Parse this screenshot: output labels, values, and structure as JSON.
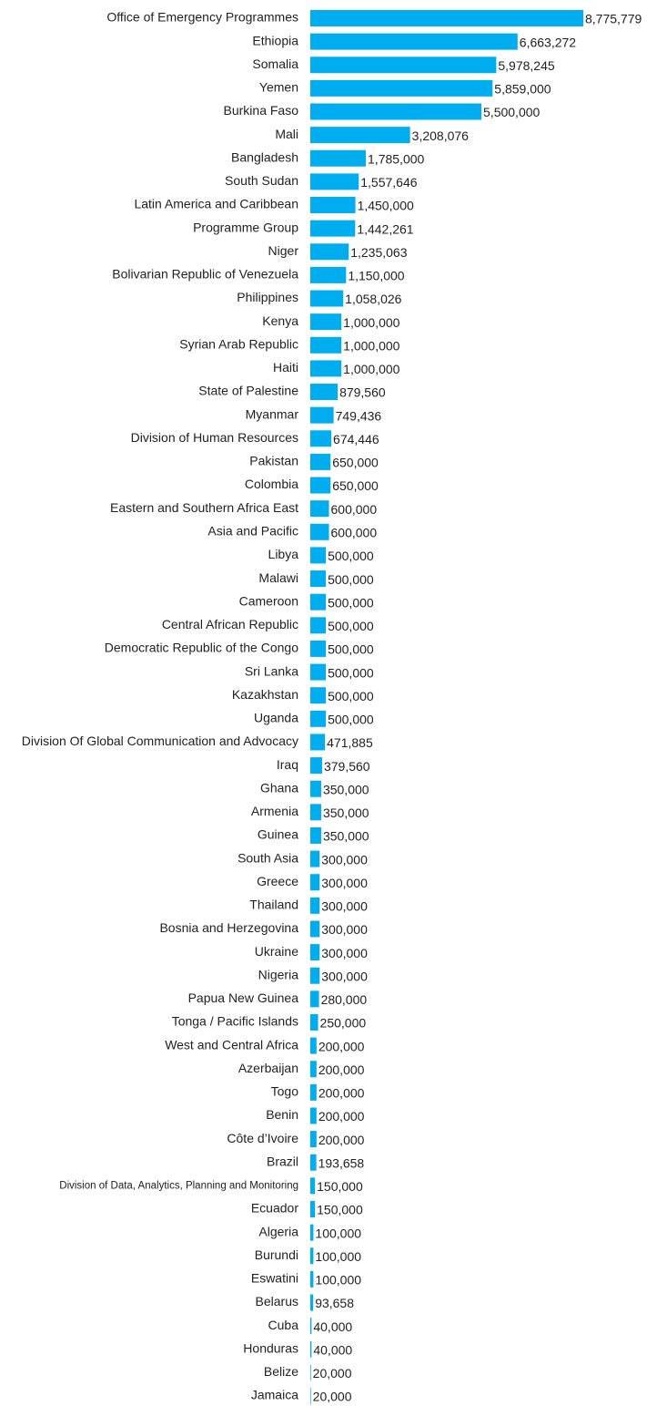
{
  "chart_data": {
    "type": "bar",
    "orientation": "horizontal",
    "color": "#00aeef",
    "categories": [
      "Office of Emergency Programmes",
      "Ethiopia",
      "Somalia",
      "Yemen",
      "Burkina Faso",
      "Mali",
      "Bangladesh",
      "South Sudan",
      "Latin America and Caribbean",
      "Programme Group",
      "Niger",
      "Bolivarian Republic of Venezuela",
      "Philippines",
      "Kenya",
      "Syrian Arab Republic",
      "Haiti",
      "State of Palestine",
      "Myanmar",
      "Division of Human Resources",
      "Pakistan",
      "Colombia",
      "Eastern and Southern Africa East",
      "Asia and Pacific",
      "Libya",
      "Malawi",
      "Cameroon",
      "Central African Republic",
      "Democratic Republic of the Congo",
      "Sri Lanka",
      "Kazakhstan",
      "Uganda",
      "Division Of Global Communication and Advocacy",
      "Iraq",
      "Ghana",
      "Armenia",
      "Guinea",
      "South Asia",
      "Greece",
      "Thailand",
      "Bosnia and Herzegovina",
      "Ukraine",
      "Nigeria",
      "Papua New Guinea",
      "Tonga / Pacific Islands",
      "West and Central Africa",
      "Azerbaijan",
      "Togo",
      "Benin",
      "Côte d’Ivoire",
      "Brazil",
      "Division of Data, Analytics, Planning and Monitoring",
      "Ecuador",
      "Algeria",
      "Burundi",
      "Eswatini",
      "Belarus",
      "Cuba",
      "Honduras",
      "Belize",
      "Jamaica"
    ],
    "values": [
      8775779,
      6663272,
      5978245,
      5859000,
      5500000,
      3208076,
      1785000,
      1557646,
      1450000,
      1442261,
      1235063,
      1150000,
      1058026,
      1000000,
      1000000,
      1000000,
      879560,
      749436,
      674446,
      650000,
      650000,
      600000,
      600000,
      500000,
      500000,
      500000,
      500000,
      500000,
      500000,
      500000,
      500000,
      471885,
      379560,
      350000,
      350000,
      350000,
      300000,
      300000,
      300000,
      300000,
      300000,
      300000,
      280000,
      250000,
      200000,
      200000,
      200000,
      200000,
      200000,
      193658,
      150000,
      150000,
      100000,
      100000,
      100000,
      93658,
      40000,
      40000,
      20000,
      20000
    ],
    "value_labels": [
      "8,775,779",
      "6,663,272",
      "5,978,245",
      "5,859,000",
      "5,500,000",
      "3,208,076",
      "1,785,000",
      "1,557,646",
      "1,450,000",
      "1,442,261",
      "1,235,063",
      "1,150,000",
      "1,058,026",
      "1,000,000",
      "1,000,000",
      "1,000,000",
      "879,560",
      "749,436",
      "674,446",
      "650,000",
      "650,000",
      "600,000",
      "600,000",
      "500,000",
      "500,000",
      "500,000",
      "500,000",
      "500,000",
      "500,000",
      "500,000",
      "500,000",
      "471,885",
      "379,560",
      "350,000",
      "350,000",
      "350,000",
      "300,000",
      "300,000",
      "300,000",
      "300,000",
      "300,000",
      "300,000",
      "280,000",
      "250,000",
      "200,000",
      "200,000",
      "200,000",
      "200,000",
      "200,000",
      "193,658",
      "150,000",
      "150,000",
      "100,000",
      "100,000",
      "100,000",
      "93,658",
      "40,000",
      "40,000",
      "20,000",
      "20,000"
    ]
  }
}
